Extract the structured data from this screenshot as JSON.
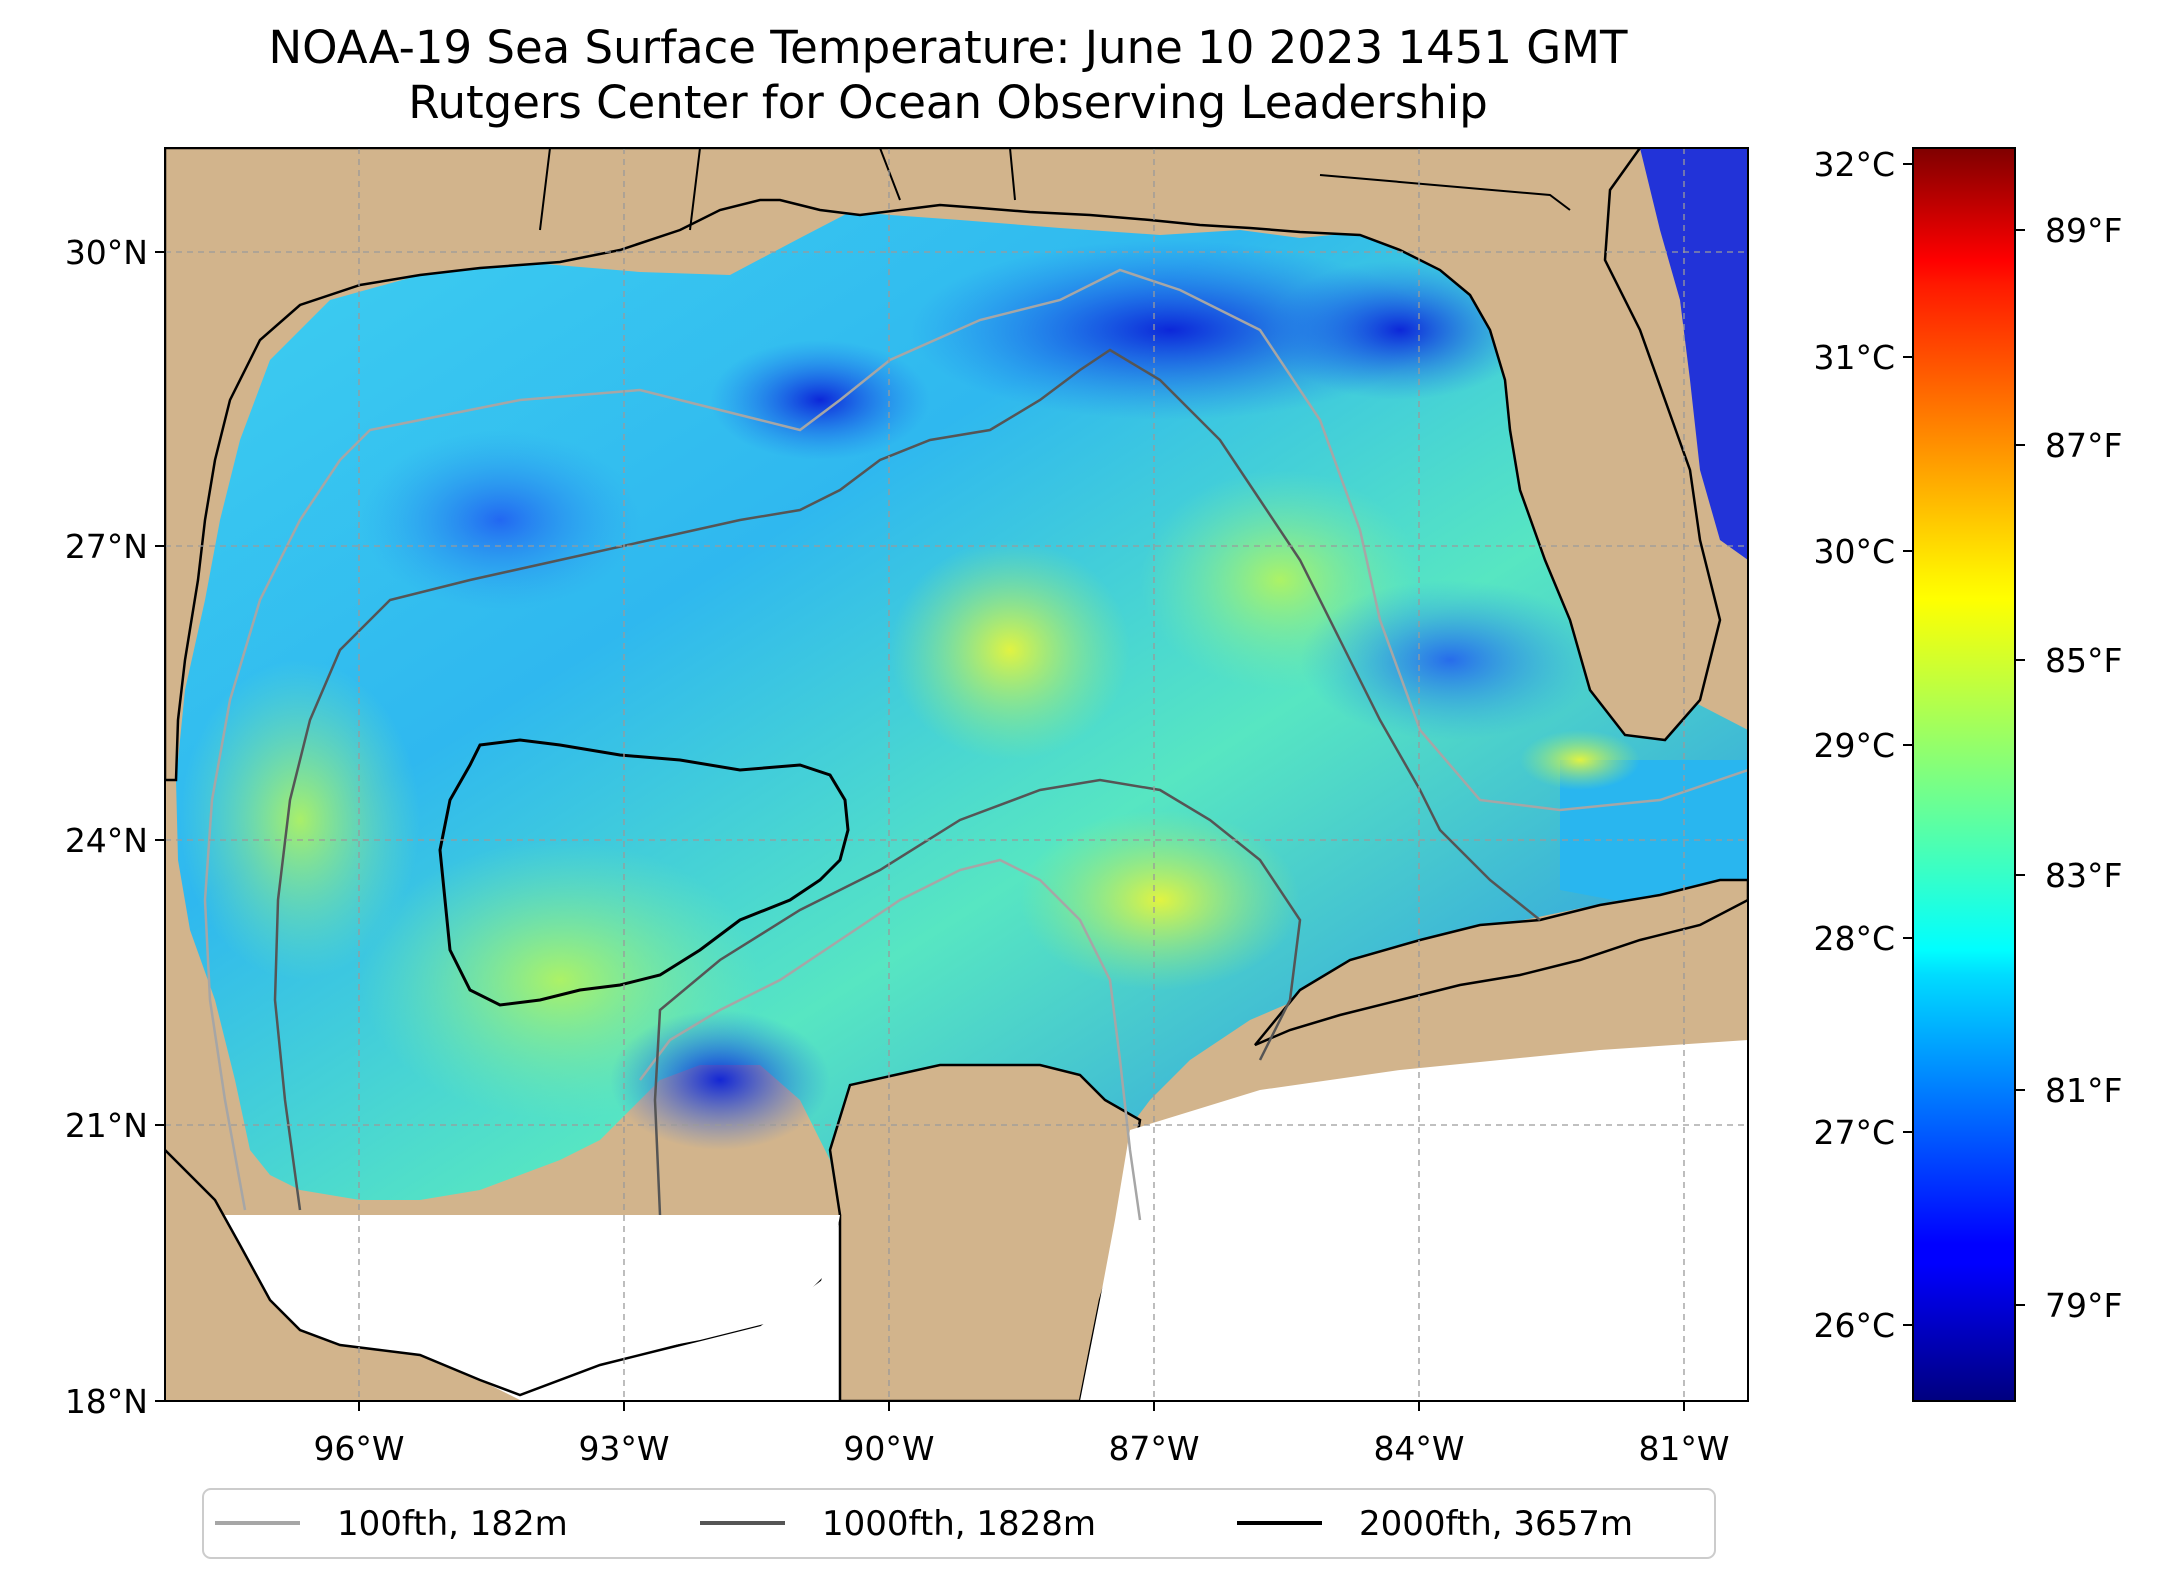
{
  "title": {
    "line1": "NOAA-19 Sea Surface Temperature: June 10 2023 1451 GMT",
    "line2": "Rutgers Center for Ocean Observing Leadership"
  },
  "map": {
    "lon_range": [
      -98.3,
      -80.4
    ],
    "lat_range": [
      18.0,
      30.8
    ],
    "lat_ticks": [
      {
        "value": 30,
        "label": "30°N"
      },
      {
        "value": 27,
        "label": "27°N"
      },
      {
        "value": 24,
        "label": "24°N"
      },
      {
        "value": 21,
        "label": "21°N"
      },
      {
        "value": 18,
        "label": "18°N"
      }
    ],
    "lon_ticks": [
      {
        "value": -96,
        "label": "96°W"
      },
      {
        "value": -93,
        "label": "93°W"
      },
      {
        "value": -90,
        "label": "90°W"
      },
      {
        "value": -87,
        "label": "87°W"
      },
      {
        "value": -84,
        "label": "84°W"
      },
      {
        "value": -81,
        "label": "81°W"
      }
    ],
    "gridlines": true,
    "colors": {
      "land": "#d2b48c",
      "no_data": "#ffffff",
      "isobath_100": "#a6a6a6",
      "isobath_1000": "#555555",
      "isobath_2000": "#000000",
      "coastline": "#000000"
    }
  },
  "colorbar": {
    "colormap": "jet",
    "celsius_ticks": [
      {
        "value": 32,
        "label": "32°C"
      },
      {
        "value": 31,
        "label": "31°C"
      },
      {
        "value": 30,
        "label": "30°C"
      },
      {
        "value": 29,
        "label": "29°C"
      },
      {
        "value": 28,
        "label": "28°C"
      },
      {
        "value": 27,
        "label": "27°C"
      },
      {
        "value": 26,
        "label": "26°C"
      }
    ],
    "fahrenheit_ticks": [
      {
        "value": 89,
        "label": "89°F"
      },
      {
        "value": 87,
        "label": "87°F"
      },
      {
        "value": 85,
        "label": "85°F"
      },
      {
        "value": 83,
        "label": "83°F"
      },
      {
        "value": 81,
        "label": "81°F"
      },
      {
        "value": 79,
        "label": "79°F"
      }
    ]
  },
  "legend": {
    "placement": "bottom",
    "items": [
      {
        "label": "100fth, 182m",
        "color": "#a6a6a6"
      },
      {
        "label": "1000fth, 1828m",
        "color": "#555555"
      },
      {
        "label": "2000fth, 3657m",
        "color": "#000000"
      }
    ]
  }
}
